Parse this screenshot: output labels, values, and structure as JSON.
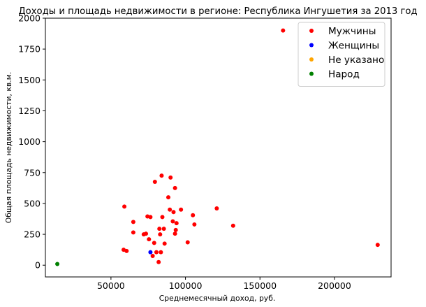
{
  "chart_data": {
    "type": "scatter",
    "title": "Доходы и площадь недвижимости в регионе: Республика Ингушетия за 2013 год",
    "xlabel": "Среднемесячный доход, руб.",
    "ylabel": "Общая площадь недвижимости, кв.м.",
    "xlim": [
      6000,
      238000
    ],
    "ylim": [
      -95,
      2000
    ],
    "xticks": [
      50000,
      100000,
      150000,
      200000
    ],
    "xtick_labels": [
      "50000",
      "100000",
      "150000",
      "200000"
    ],
    "yticks": [
      0,
      250,
      500,
      750,
      1000,
      1250,
      1500,
      1750,
      2000
    ],
    "ytick_labels": [
      "0",
      "250",
      "500",
      "750",
      "1000",
      "1250",
      "1500",
      "1750",
      "2000"
    ],
    "grid": false,
    "legend_position": "top-right",
    "series": [
      {
        "name": "Мужчины",
        "color": "#ff0000",
        "points": [
          [
            165500,
            1900
          ],
          [
            229000,
            165
          ],
          [
            121000,
            460
          ],
          [
            132000,
            320
          ],
          [
            59000,
            475
          ],
          [
            58500,
            125
          ],
          [
            60500,
            115
          ],
          [
            65000,
            350
          ],
          [
            65000,
            265
          ],
          [
            72000,
            250
          ],
          [
            73500,
            255
          ],
          [
            74500,
            395
          ],
          [
            75500,
            210
          ],
          [
            76500,
            390
          ],
          [
            78000,
            75
          ],
          [
            79000,
            180
          ],
          [
            79500,
            675
          ],
          [
            80500,
            105
          ],
          [
            82000,
            25
          ],
          [
            82500,
            295
          ],
          [
            83000,
            250
          ],
          [
            83500,
            105
          ],
          [
            84000,
            725
          ],
          [
            84500,
            390
          ],
          [
            85500,
            295
          ],
          [
            86000,
            175
          ],
          [
            88500,
            550
          ],
          [
            89500,
            450
          ],
          [
            90000,
            710
          ],
          [
            91500,
            355
          ],
          [
            92000,
            430
          ],
          [
            93000,
            625
          ],
          [
            93000,
            255
          ],
          [
            93500,
            285
          ],
          [
            94000,
            340
          ],
          [
            97000,
            450
          ],
          [
            101500,
            185
          ],
          [
            105000,
            405
          ],
          [
            106000,
            330
          ]
        ]
      },
      {
        "name": "Женщины",
        "color": "#0000ff",
        "points": [
          [
            76500,
            105
          ]
        ]
      },
      {
        "name": "Не указано",
        "color": "#ffa500",
        "points": []
      },
      {
        "name": "Народ",
        "color": "#008000",
        "points": [
          [
            14000,
            10
          ]
        ]
      }
    ]
  }
}
